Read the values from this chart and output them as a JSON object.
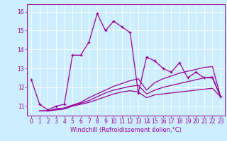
{
  "title": "",
  "xlabel": "Windchill (Refroidissement éolien,°C)",
  "ylabel": "",
  "xlim": [
    -0.5,
    23.5
  ],
  "ylim": [
    10.5,
    16.4
  ],
  "xticks": [
    0,
    1,
    2,
    3,
    4,
    5,
    6,
    7,
    8,
    9,
    10,
    11,
    12,
    13,
    14,
    15,
    16,
    17,
    18,
    19,
    20,
    21,
    22,
    23
  ],
  "yticks": [
    11,
    12,
    13,
    14,
    15,
    16
  ],
  "bg_color": "#cceeff",
  "line_color": "#990099",
  "grid_color": "#aadddd",
  "series": [
    {
      "x": [
        0,
        1,
        2,
        3,
        4,
        5,
        6,
        7,
        8,
        9,
        10,
        11,
        12,
        13,
        14,
        15,
        16,
        17,
        18,
        19,
        20,
        21,
        22,
        23
      ],
      "y": [
        12.4,
        11.1,
        10.8,
        11.0,
        11.1,
        13.7,
        13.7,
        14.4,
        15.9,
        15.0,
        15.5,
        15.2,
        14.9,
        11.7,
        13.6,
        13.4,
        13.0,
        12.8,
        13.3,
        12.5,
        12.8,
        12.5,
        12.5,
        11.5
      ],
      "marker": "+"
    },
    {
      "x": [
        1,
        2,
        3,
        4,
        5,
        6,
        7,
        8,
        9,
        10,
        11,
        12,
        13,
        14,
        15,
        16,
        17,
        18,
        19,
        20,
        21,
        22,
        23
      ],
      "y": [
        10.75,
        10.75,
        10.85,
        10.9,
        11.05,
        11.2,
        11.45,
        11.65,
        11.85,
        12.05,
        12.2,
        12.35,
        12.45,
        11.85,
        12.25,
        12.45,
        12.6,
        12.75,
        12.85,
        12.95,
        13.05,
        13.1,
        11.5
      ],
      "marker": null
    },
    {
      "x": [
        1,
        2,
        3,
        4,
        5,
        6,
        7,
        8,
        9,
        10,
        11,
        12,
        13,
        14,
        15,
        16,
        17,
        18,
        19,
        20,
        21,
        22,
        23
      ],
      "y": [
        10.75,
        10.75,
        10.85,
        10.9,
        11.05,
        11.15,
        11.3,
        11.5,
        11.7,
        11.85,
        11.95,
        12.05,
        12.1,
        11.65,
        11.85,
        12.0,
        12.1,
        12.2,
        12.3,
        12.4,
        12.5,
        12.55,
        11.5
      ],
      "marker": null
    },
    {
      "x": [
        1,
        2,
        3,
        4,
        5,
        6,
        7,
        8,
        9,
        10,
        11,
        12,
        13,
        14,
        15,
        16,
        17,
        18,
        19,
        20,
        21,
        22,
        23
      ],
      "y": [
        10.75,
        10.75,
        10.8,
        10.85,
        11.0,
        11.1,
        11.2,
        11.35,
        11.5,
        11.65,
        11.75,
        11.82,
        11.75,
        11.45,
        11.6,
        11.65,
        11.7,
        11.75,
        11.8,
        11.85,
        11.9,
        11.95,
        11.5
      ],
      "marker": null
    }
  ]
}
